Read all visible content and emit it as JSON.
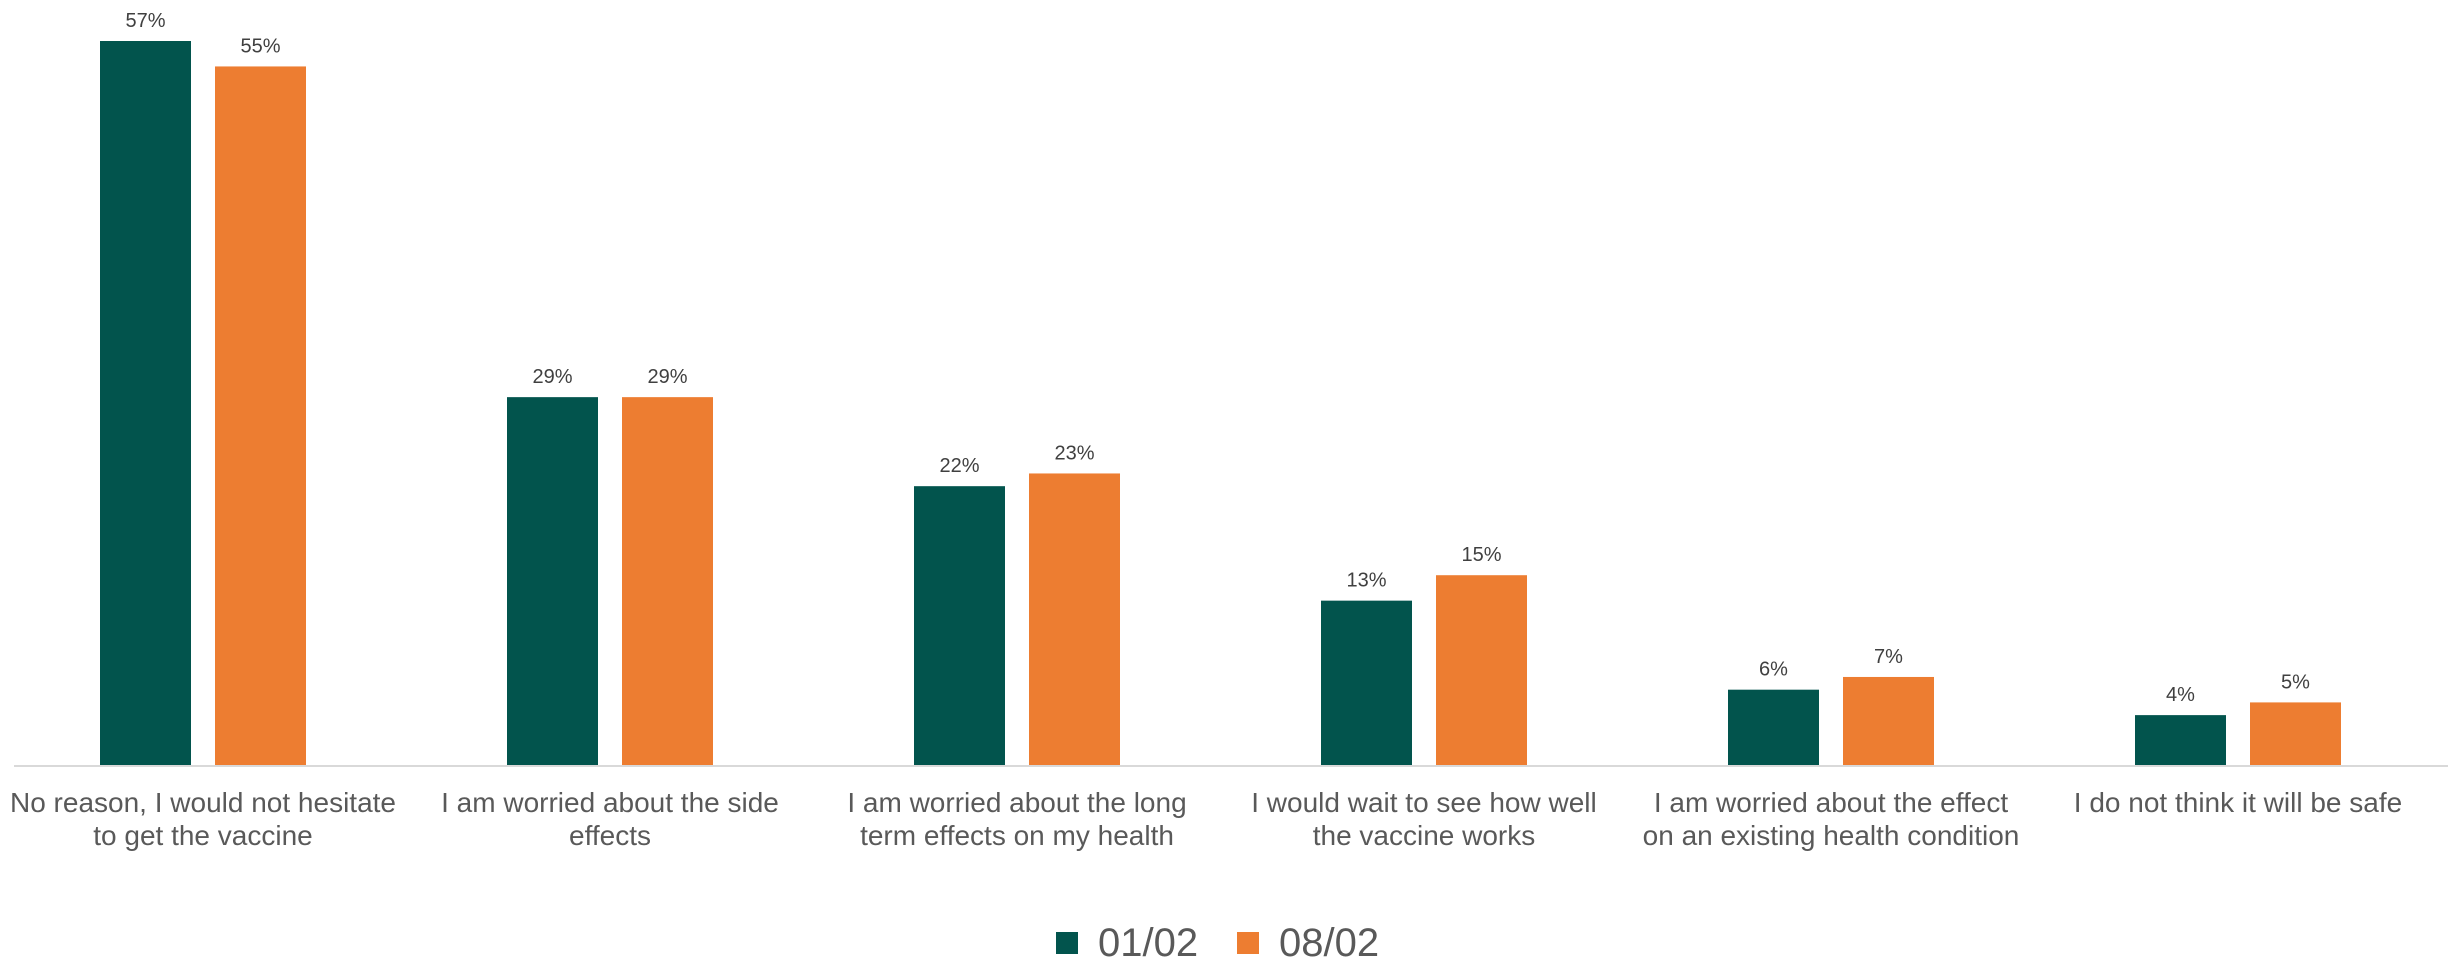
{
  "chart_data": {
    "type": "bar",
    "categories": [
      [
        "No reason, I would not hesitate",
        "to get the vaccine"
      ],
      [
        "I am worried about the side",
        "effects"
      ],
      [
        "I am worried about the long",
        "term effects on my health"
      ],
      [
        "I would wait to see how well",
        "the vaccine works"
      ],
      [
        "I am worried about the effect",
        "on an existing health condition"
      ],
      [
        "I do not think it will be safe"
      ]
    ],
    "series": [
      {
        "name": "01/02",
        "color": "#02544D",
        "values": [
          57,
          29,
          22,
          13,
          6,
          4
        ],
        "labels": [
          "57%",
          "29%",
          "22%",
          "13%",
          "6%",
          "4%"
        ]
      },
      {
        "name": "08/02",
        "color": "#ED7D31",
        "values": [
          55,
          29,
          23,
          15,
          7,
          5
        ],
        "labels": [
          "55%",
          "29%",
          "23%",
          "15%",
          "7%",
          "5%"
        ]
      }
    ],
    "ylim": [
      0,
      57
    ],
    "grid": false,
    "legend_position": "bottom",
    "axis_color": "#D9D9D9"
  }
}
